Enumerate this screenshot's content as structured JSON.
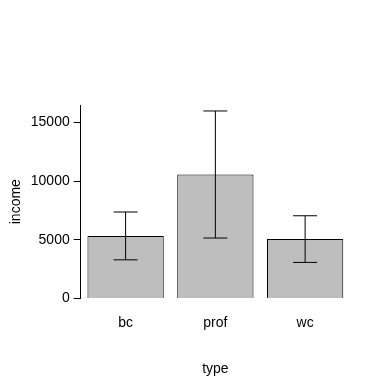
{
  "chart_data": {
    "type": "bar",
    "x_label": "type",
    "y_label": "income",
    "categories": [
      "bc",
      "prof",
      "wc"
    ],
    "values": [
      5330,
      10570,
      5060
    ],
    "errors": [
      2040,
      5420,
      1990
    ],
    "color": "#bebebe",
    "ylim": [
      0,
      16500
    ],
    "yticks": [
      0,
      5000,
      10000,
      15000
    ],
    "grid": false
  }
}
